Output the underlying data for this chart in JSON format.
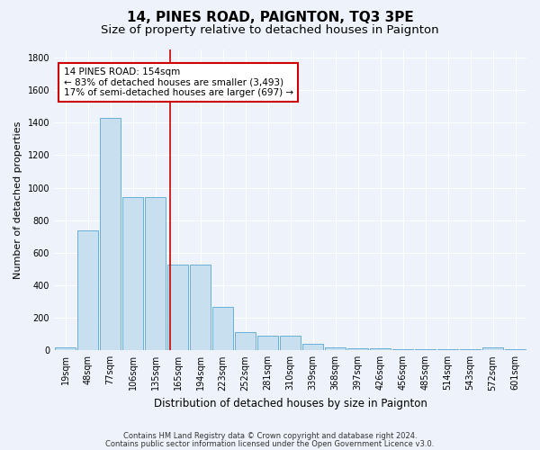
{
  "title": "14, PINES ROAD, PAIGNTON, TQ3 3PE",
  "subtitle": "Size of property relative to detached houses in Paignton",
  "xlabel": "Distribution of detached houses by size in Paignton",
  "ylabel": "Number of detached properties",
  "footnote1": "Contains HM Land Registry data © Crown copyright and database right 2024.",
  "footnote2": "Contains public sector information licensed under the Open Government Licence v3.0.",
  "bar_labels": [
    "19sqm",
    "48sqm",
    "77sqm",
    "106sqm",
    "135sqm",
    "165sqm",
    "194sqm",
    "223sqm",
    "252sqm",
    "281sqm",
    "310sqm",
    "339sqm",
    "368sqm",
    "397sqm",
    "426sqm",
    "456sqm",
    "485sqm",
    "514sqm",
    "543sqm",
    "572sqm",
    "601sqm"
  ],
  "bar_values": [
    20,
    740,
    1430,
    940,
    940,
    530,
    530,
    270,
    110,
    90,
    90,
    40,
    20,
    15,
    10,
    5,
    5,
    5,
    5,
    20,
    5
  ],
  "bar_color": "#c8dff0",
  "bar_edge_color": "#6aafd6",
  "background_color": "#eef2fa",
  "grid_color": "#ffffff",
  "red_line_x": 4.67,
  "red_line_color": "#cc0000",
  "annotation_text": "14 PINES ROAD: 154sqm\n← 83% of detached houses are smaller (3,493)\n17% of semi-detached houses are larger (697) →",
  "annotation_box_color": "#ffffff",
  "annotation_box_edge": "#cc0000",
  "ylim": [
    0,
    1850
  ],
  "yticks": [
    0,
    200,
    400,
    600,
    800,
    1000,
    1200,
    1400,
    1600,
    1800
  ],
  "title_fontsize": 11,
  "subtitle_fontsize": 9.5,
  "annotation_fontsize": 7.5,
  "xlabel_fontsize": 8.5,
  "ylabel_fontsize": 8,
  "tick_fontsize": 7,
  "footnote_fontsize": 6
}
